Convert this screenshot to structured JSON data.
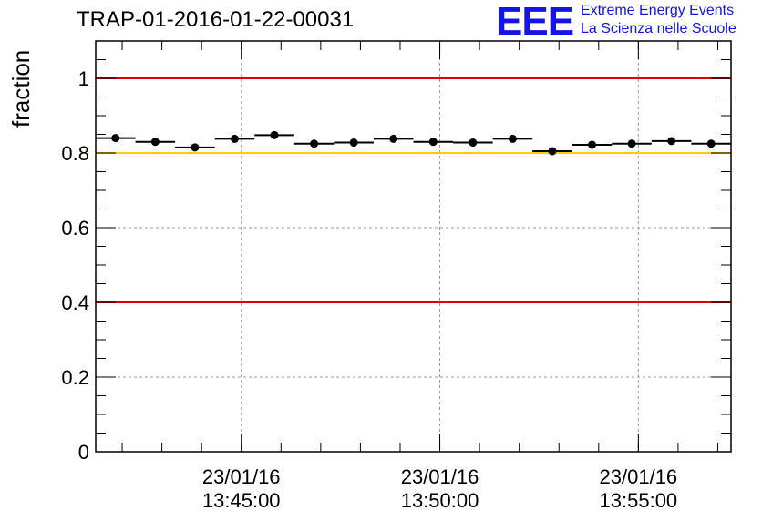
{
  "title": "TRAP-01-2016-01-22-00031",
  "logo": {
    "mark": "EEE",
    "line1": "Extreme Energy Events",
    "line2": "La Scienza nelle Scuole"
  },
  "colors": {
    "red_line": "#e00000",
    "yellow_line": "#ffcc00",
    "points": "#000000",
    "logo": "#1414e6"
  },
  "chart_data": {
    "type": "scatter",
    "title": "TRAP-01-2016-01-22-00031",
    "xlabel": "",
    "ylabel": "fraction",
    "ylim": [
      0,
      1.1
    ],
    "xlim": [
      "13:41:20",
      "13:57:20"
    ],
    "yticks": [
      "0",
      "0.2",
      "0.4",
      "0.6",
      "0.8",
      "1"
    ],
    "xticks": [
      {
        "date": "23/01/16",
        "time": "13:45:00"
      },
      {
        "date": "23/01/16",
        "time": "13:50:00"
      },
      {
        "date": "23/01/16",
        "time": "13:55:00"
      }
    ],
    "grid": true,
    "reference_lines": [
      {
        "y": 1.0,
        "color": "red"
      },
      {
        "y": 0.8,
        "color": "yellow"
      },
      {
        "y": 0.4,
        "color": "red"
      }
    ],
    "series": [
      {
        "x": [
          "13:41:50",
          "13:42:50",
          "13:43:50",
          "13:44:50",
          "13:45:50",
          "13:46:50",
          "13:47:50",
          "13:48:50",
          "13:49:50",
          "13:50:50",
          "13:51:50",
          "13:52:50",
          "13:53:50",
          "13:54:50",
          "13:55:50",
          "13:56:50"
        ],
        "y": [
          0.84,
          0.83,
          0.815,
          0.838,
          0.848,
          0.825,
          0.828,
          0.838,
          0.83,
          0.828,
          0.838,
          0.805,
          0.822,
          0.825,
          0.832,
          0.825
        ],
        "bin_width_seconds": 60
      }
    ]
  }
}
